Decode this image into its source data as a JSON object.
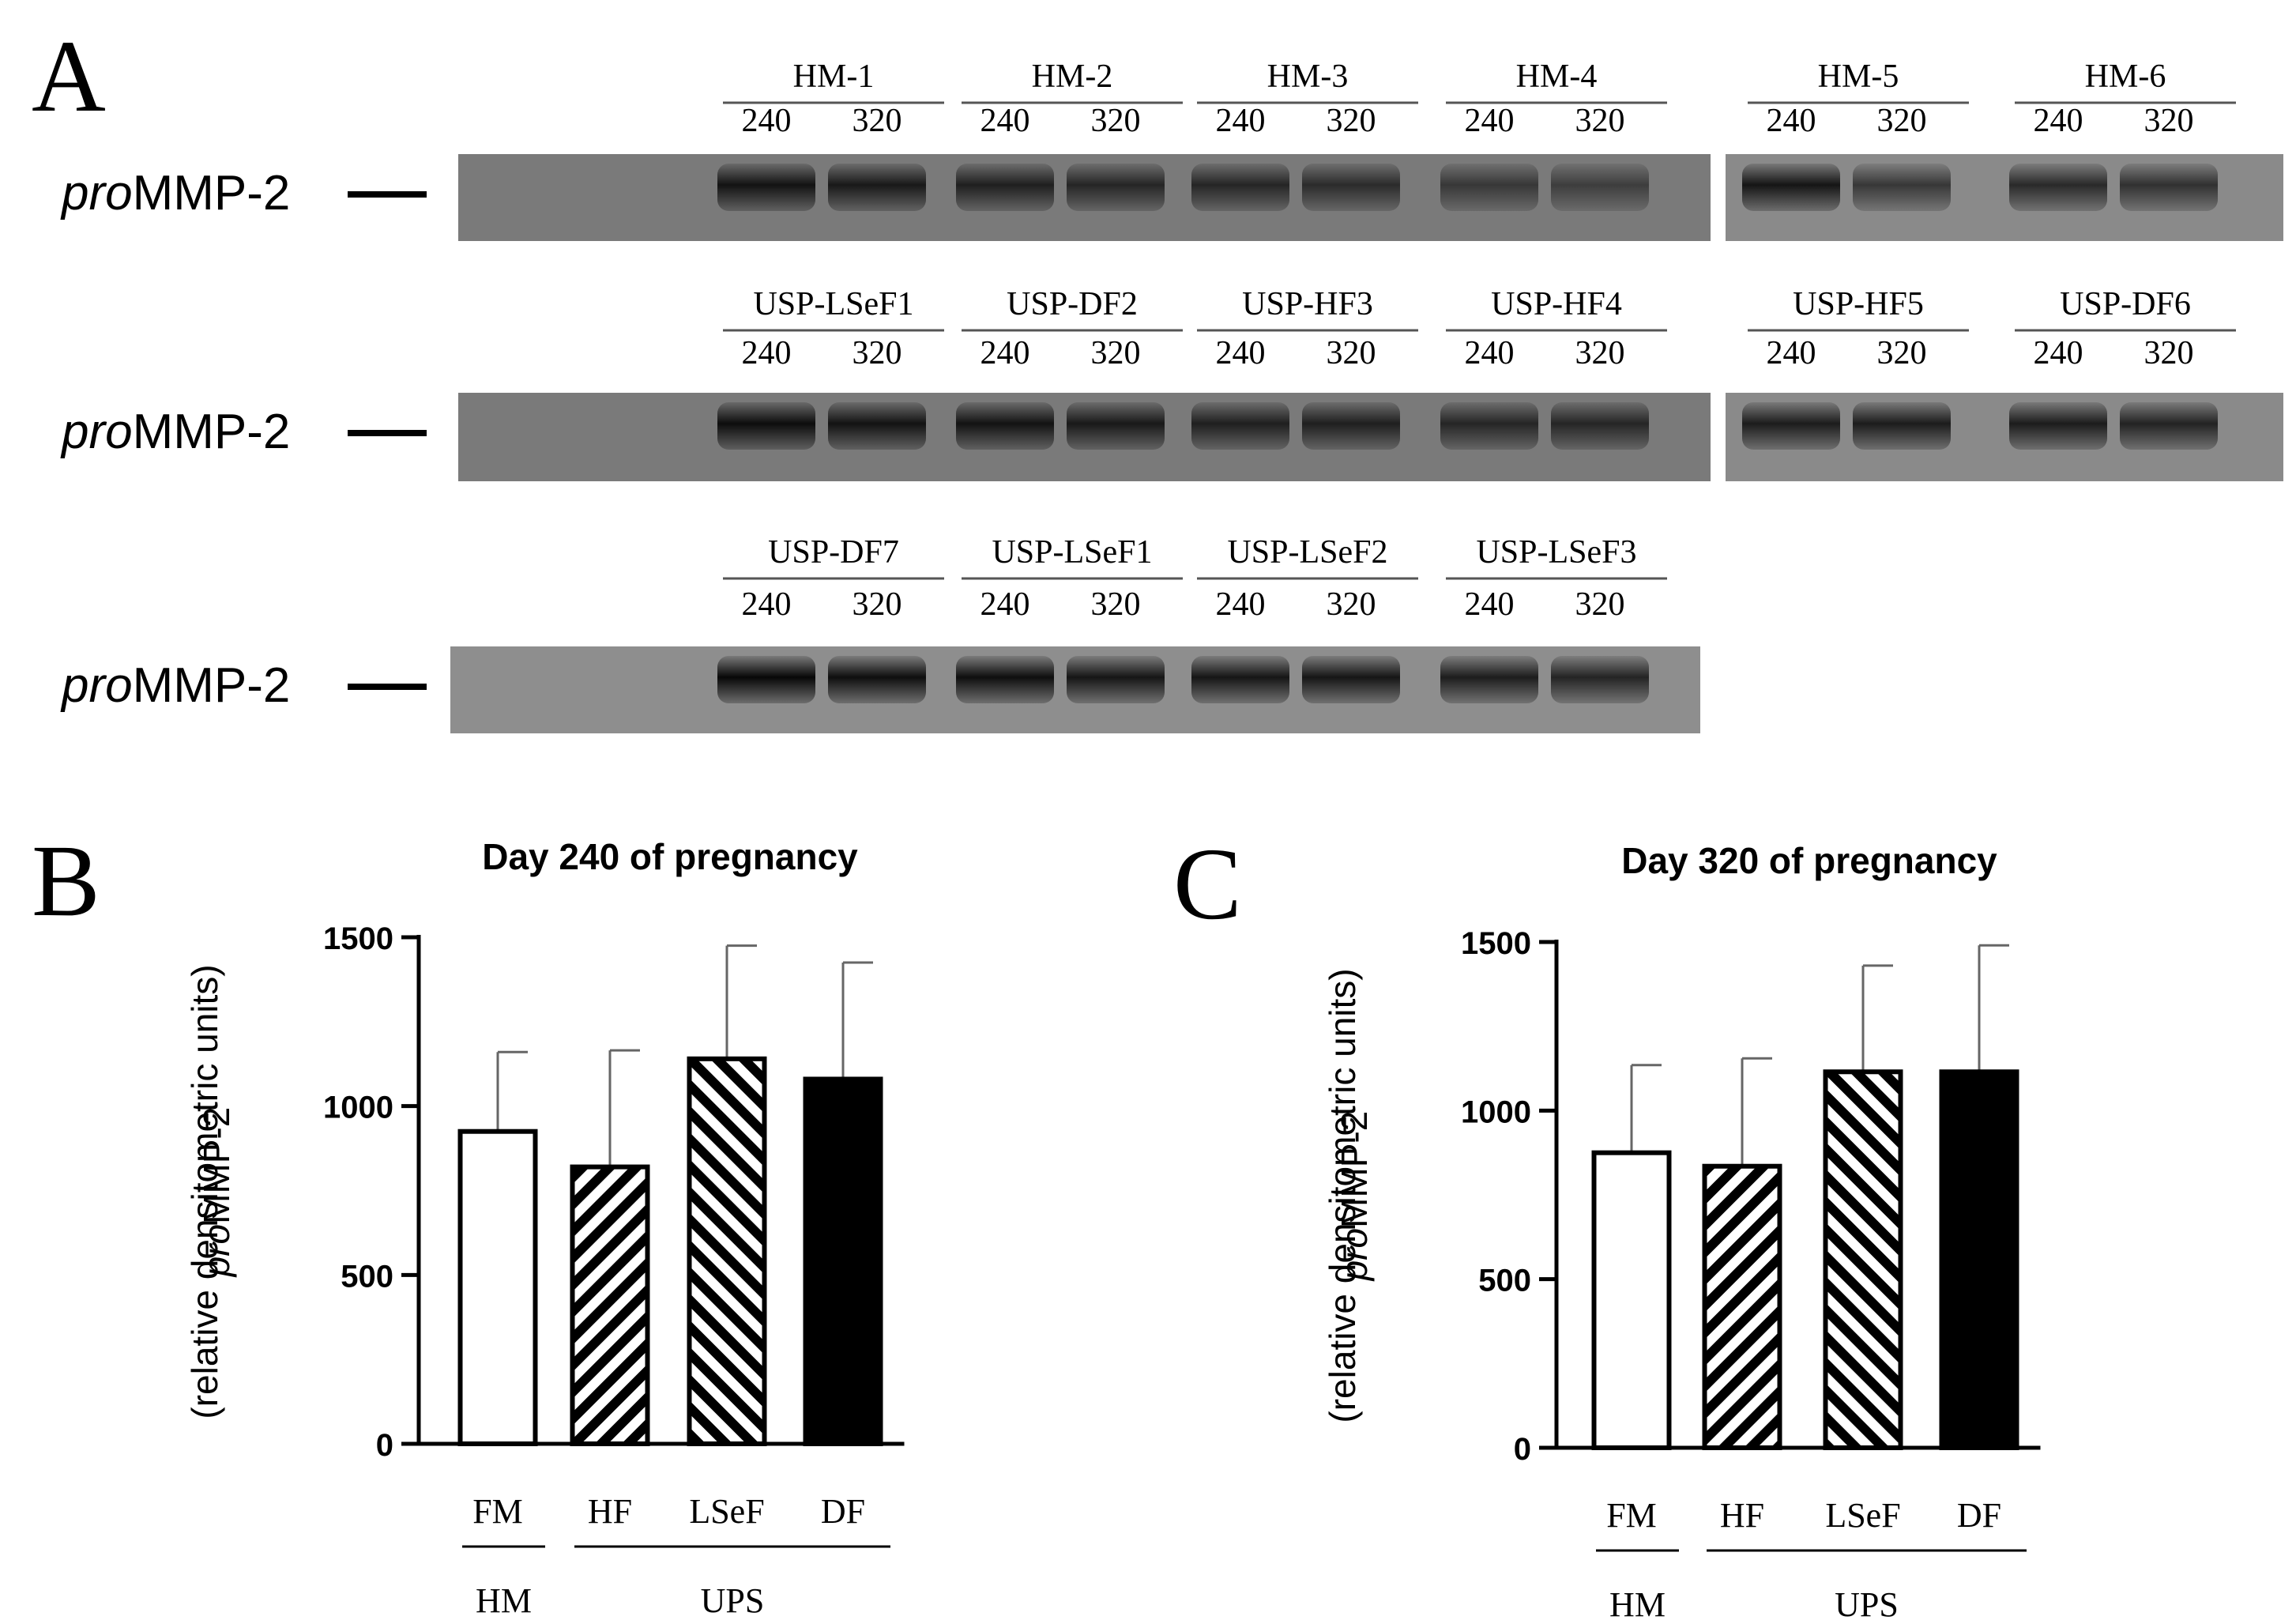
{
  "panel_labels": {
    "a": "A",
    "b": "B",
    "c": "C"
  },
  "gel": {
    "band_label_italic": "pro",
    "band_label_rest": "MMP-2",
    "days": [
      "240",
      "320"
    ],
    "rows": [
      {
        "name": "gel-row-1",
        "groups": [
          "HM-1",
          "HM-2",
          "HM-3",
          "HM-4",
          "HM-5",
          "HM-6"
        ],
        "band_intensity": [
          0.85,
          0.8,
          0.75,
          0.7,
          0.7,
          0.65,
          0.55,
          0.5,
          0.85,
          0.6,
          0.7,
          0.65
        ]
      },
      {
        "name": "gel-row-2",
        "groups": [
          "USP-LSeF1",
          "USP-DF2",
          "USP-HF3",
          "USP-HF4",
          "USP-HF5",
          "USP-DF6"
        ],
        "band_intensity": [
          0.9,
          0.85,
          0.85,
          0.8,
          0.75,
          0.75,
          0.7,
          0.7,
          0.8,
          0.8,
          0.8,
          0.75
        ]
      },
      {
        "name": "gel-row-3",
        "groups": [
          "USP-DF7",
          "USP-LSeF1",
          "USP-LSeF2",
          "USP-LSeF3"
        ],
        "band_intensity": [
          0.95,
          0.9,
          0.9,
          0.85,
          0.85,
          0.85,
          0.8,
          0.75
        ]
      }
    ]
  },
  "chart_data": [
    {
      "type": "bar",
      "title": "Day 240 of pregnancy",
      "ylabel_italic": "pro",
      "ylabel_rest": "MMP-2",
      "ylabel_line2": "(relative densitometric units)",
      "ylim": [
        0,
        1500
      ],
      "yticks": [
        0,
        500,
        1000,
        1500
      ],
      "categories": [
        "FM",
        "HF",
        "LSeF",
        "DF"
      ],
      "values": [
        925,
        820,
        1140,
        1080
      ],
      "errors": [
        235,
        345,
        335,
        345
      ],
      "fill_patterns": [
        "white",
        "hatch-right",
        "hatch-left",
        "solid-black"
      ],
      "groups": [
        {
          "label": "HM",
          "categories": [
            "FM"
          ]
        },
        {
          "label": "UPS",
          "categories": [
            "HF",
            "LSeF",
            "DF"
          ]
        }
      ]
    },
    {
      "type": "bar",
      "title": "Day 320 of pregnancy",
      "ylabel_italic": "pro",
      "ylabel_rest": "MMP-2",
      "ylabel_line2": "(relative densitometric units)",
      "ylim": [
        0,
        1500
      ],
      "yticks": [
        0,
        500,
        1000,
        1500
      ],
      "categories": [
        "FM",
        "HF",
        "LSeF",
        "DF"
      ],
      "values": [
        875,
        835,
        1115,
        1115
      ],
      "errors": [
        260,
        320,
        315,
        375
      ],
      "fill_patterns": [
        "white",
        "hatch-right",
        "hatch-left",
        "solid-black"
      ],
      "groups": [
        {
          "label": "HM",
          "categories": [
            "FM"
          ]
        },
        {
          "label": "UPS",
          "categories": [
            "HF",
            "LSeF",
            "DF"
          ]
        }
      ]
    }
  ]
}
